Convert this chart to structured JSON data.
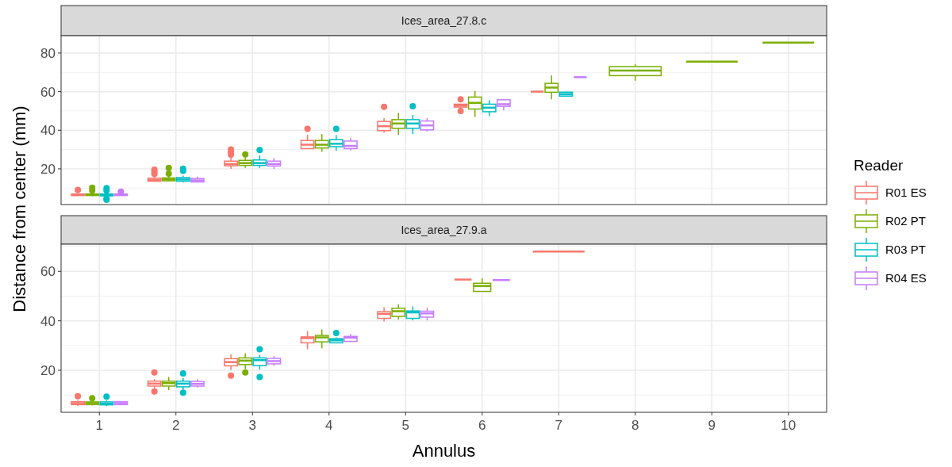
{
  "chart_data": [
    {
      "type": "box",
      "title": "Ices_area_27.8.c",
      "ylabel": "Distance from center (mm)",
      "legend": "right",
      "legend_title": "Reader",
      "tick_labels": "y",
      "grid": true,
      "categories": [
        "1",
        "2",
        "3",
        "4",
        "5",
        "6",
        "7",
        "8",
        "9",
        "10"
      ],
      "ylim": [
        1.5,
        89
      ],
      "yticks": [
        20,
        40,
        60,
        80
      ],
      "series": [
        {
          "name": "R01 ES",
          "color": "#f8766d",
          "boxes": [
            {
              "low": 5.8,
              "q1": 6.2,
              "median": 6.5,
              "q3": 7,
              "high": 7.5,
              "outliers": [
                9.1
              ]
            },
            {
              "low": 13.6,
              "q1": 13.6,
              "median": 14.3,
              "q3": 15.2,
              "high": 16.2,
              "outliers": [
                17.4,
                18.5,
                19.6
              ]
            },
            {
              "low": 20,
              "q1": 21.6,
              "median": 22.5,
              "q3": 24,
              "high": 26,
              "outliers": [
                27.4,
                28.8,
                30.1
              ]
            },
            {
              "low": 30.5,
              "q1": 30.5,
              "median": 32.5,
              "q3": 34.7,
              "high": 37.7,
              "outliers": [
                40.7
              ]
            },
            {
              "low": 38.8,
              "q1": 39.8,
              "median": 42.1,
              "q3": 44.6,
              "high": 46.3,
              "outliers": [
                52.1
              ]
            },
            {
              "low": 51.5,
              "q1": 52,
              "median": 52.8,
              "q3": 53.5,
              "high": 53.5,
              "outliers": [
                50,
                56
              ]
            },
            {
              "low": 60,
              "q1": 60,
              "median": 60,
              "q3": 60,
              "high": 60
            },
            null,
            null,
            null
          ]
        },
        {
          "name": "R02 PT",
          "color": "#7cae00",
          "boxes": [
            {
              "low": 5.8,
              "q1": 6.2,
              "median": 6.5,
              "q3": 7,
              "high": 7.5,
              "outliers": [
                8.8,
                10.2
              ]
            },
            {
              "low": 13.8,
              "q1": 13.8,
              "median": 14.5,
              "q3": 15.3,
              "high": 16.5,
              "outliers": [
                17.5,
                20.5
              ]
            },
            {
              "low": 20.5,
              "q1": 21.8,
              "median": 23,
              "q3": 24.4,
              "high": 26,
              "outliers": [
                27.5
              ]
            },
            {
              "low": 28.8,
              "q1": 30.8,
              "median": 32.5,
              "q3": 34.7,
              "high": 38
            },
            {
              "low": 37.7,
              "q1": 41,
              "median": 43.5,
              "q3": 45.5,
              "high": 49.1
            },
            {
              "low": 46.9,
              "q1": 51,
              "median": 54.2,
              "q3": 57.2,
              "high": 60.4
            },
            {
              "low": 56,
              "q1": 59.7,
              "median": 62.1,
              "q3": 64.3,
              "high": 68.5
            },
            {
              "low": 65.7,
              "q1": 68.3,
              "median": 70.9,
              "q3": 73,
              "high": 74.2
            },
            {
              "low": 75.5,
              "q1": 75.5,
              "median": 75.5,
              "q3": 75.5,
              "high": 75.5
            },
            {
              "low": 85.4,
              "q1": 85.4,
              "median": 85.4,
              "q3": 85.4,
              "high": 85.4
            }
          ]
        },
        {
          "name": "R03 PT",
          "color": "#00bfc4",
          "boxes": [
            {
              "low": 5.5,
              "q1": 6,
              "median": 6.5,
              "q3": 7,
              "high": 7.8,
              "outliers": [
                4,
                4.7,
                8.8,
                10
              ]
            },
            {
              "low": 13,
              "q1": 13.6,
              "median": 14.5,
              "q3": 15.5,
              "high": 16.5,
              "outliers": [
                19,
                20.1
              ]
            },
            {
              "low": 20.5,
              "q1": 21.8,
              "median": 23,
              "q3": 24.6,
              "high": 27,
              "outliers": [
                29.7
              ]
            },
            {
              "low": 29.4,
              "q1": 31.5,
              "median": 33,
              "q3": 35.2,
              "high": 37.5,
              "outliers": [
                40.7
              ]
            },
            {
              "low": 38,
              "q1": 41,
              "median": 43.5,
              "q3": 45.5,
              "high": 47.9,
              "outliers": [
                52.4
              ]
            },
            {
              "low": 47.3,
              "q1": 49.6,
              "median": 51.7,
              "q3": 53.5,
              "high": 55.5
            },
            {
              "low": 57.5,
              "q1": 57.7,
              "median": 58.7,
              "q3": 59.7,
              "high": 60
            },
            null,
            null,
            null
          ]
        },
        {
          "name": "R04 ES",
          "color": "#c77cff",
          "boxes": [
            {
              "low": 6.2,
              "q1": 6.2,
              "median": 6.5,
              "q3": 7,
              "high": 7.5,
              "outliers": [
                8.2
              ]
            },
            {
              "low": 13,
              "q1": 13.2,
              "median": 14,
              "q3": 15,
              "high": 16
            },
            {
              "low": 20,
              "q1": 21.5,
              "median": 22.5,
              "q3": 24,
              "high": 25.6
            },
            {
              "low": 29.5,
              "q1": 30.5,
              "median": 31.9,
              "q3": 34.4,
              "high": 35.9
            },
            {
              "low": 39.3,
              "q1": 40.2,
              "median": 42.5,
              "q3": 44.8,
              "high": 46.3
            },
            {
              "low": 50.3,
              "q1": 52.4,
              "median": 53.5,
              "q3": 55.8,
              "high": 56.2
            },
            {
              "low": 67.5,
              "q1": 67.5,
              "median": 67.5,
              "q3": 67.5,
              "high": 67.5
            },
            null,
            null,
            null
          ]
        }
      ]
    },
    {
      "type": "box",
      "title": "Ices_area_27.9.a",
      "xlabel": "Annulus",
      "grid": true,
      "categories": [
        "1",
        "2",
        "3",
        "4",
        "5",
        "6",
        "7",
        "8",
        "9",
        "10"
      ],
      "ylim": [
        3,
        71
      ],
      "yticks": [
        20,
        40,
        60
      ],
      "series": [
        {
          "name": "R01 ES",
          "color": "#f8766d",
          "boxes": [
            {
              "low": 5.5,
              "q1": 6.1,
              "median": 6.7,
              "q3": 7.3,
              "high": 7.9,
              "outliers": [
                9.5
              ]
            },
            {
              "low": 12.7,
              "q1": 13.6,
              "median": 14.6,
              "q3": 15.6,
              "high": 16.4,
              "outliers": [
                11.4,
                19.1
              ]
            },
            {
              "low": 20.2,
              "q1": 21.8,
              "median": 23.3,
              "q3": 24.7,
              "high": 26.4,
              "outliers": [
                17.8
              ]
            },
            {
              "low": 28.5,
              "q1": 31.1,
              "median": 33,
              "q3": 33.5,
              "high": 35.9
            },
            {
              "low": 39.7,
              "q1": 41,
              "median": 42.8,
              "q3": 43.7,
              "high": 45.5
            },
            {
              "low": 56.7,
              "q1": 56.7,
              "median": 56.7,
              "q3": 56.7,
              "high": 56.7
            },
            {
              "low": 68,
              "q1": 68,
              "median": 68,
              "q3": 68,
              "high": 68
            },
            null,
            null,
            null
          ]
        },
        {
          "name": "R02 PT",
          "color": "#7cae00",
          "boxes": [
            {
              "low": 5.8,
              "q1": 6.1,
              "median": 6.7,
              "q3": 7.2,
              "high": 7.8,
              "outliers": [
                8.7
              ]
            },
            {
              "low": 12,
              "q1": 13.6,
              "median": 14.8,
              "q3": 15.6,
              "high": 17.3
            },
            {
              "low": 20.6,
              "q1": 22.3,
              "median": 23.9,
              "q3": 25,
              "high": 26.8,
              "outliers": [
                19.1
              ]
            },
            {
              "low": 28.9,
              "q1": 31.5,
              "median": 33.3,
              "q3": 34.1,
              "high": 36.5
            },
            {
              "low": 40.5,
              "q1": 41.8,
              "median": 43.9,
              "q3": 45.1,
              "high": 46.7
            },
            {
              "low": 51.9,
              "q1": 51.9,
              "median": 54.1,
              "q3": 55.2,
              "high": 57.2
            },
            null,
            null,
            null,
            null
          ]
        },
        {
          "name": "R03 PT",
          "color": "#00bfc4",
          "boxes": [
            {
              "low": 5.5,
              "q1": 6,
              "median": 6.5,
              "q3": 7.2,
              "high": 7.8,
              "outliers": [
                9.3
              ]
            },
            {
              "low": 12.1,
              "q1": 13.3,
              "median": 14.6,
              "q3": 15.6,
              "high": 16.9,
              "outliers": [
                10.9,
                18.7
              ]
            },
            {
              "low": 20.3,
              "q1": 21.9,
              "median": 24.1,
              "q3": 25,
              "high": 26.2,
              "outliers": [
                17.3,
                28.5
              ]
            },
            {
              "low": 31,
              "q1": 31.1,
              "median": 32.1,
              "q3": 32.8,
              "high": 33.3,
              "outliers": [
                35.1
              ]
            },
            {
              "low": 40.2,
              "q1": 41,
              "median": 43.4,
              "q3": 44,
              "high": 45.8
            },
            null,
            null,
            null,
            null,
            null
          ]
        },
        {
          "name": "R04 ES",
          "color": "#c77cff",
          "boxes": [
            {
              "low": 5.9,
              "q1": 6.1,
              "median": 6.7,
              "q3": 7.3,
              "high": 7.5
            },
            {
              "low": 13,
              "q1": 13.6,
              "median": 14.5,
              "q3": 15.5,
              "high": 16.4
            },
            {
              "low": 21.8,
              "q1": 22.6,
              "median": 23.7,
              "q3": 24.8,
              "high": 25.8
            },
            {
              "low": 31.5,
              "q1": 31.7,
              "median": 33.2,
              "q3": 33.7,
              "high": 34.6
            },
            {
              "low": 40.2,
              "q1": 41.5,
              "median": 43,
              "q3": 43.9,
              "high": 45.3
            },
            {
              "low": 56.5,
              "q1": 56.5,
              "median": 56.5,
              "q3": 56.5,
              "high": 56.5
            },
            null,
            null,
            null,
            null
          ]
        }
      ]
    }
  ]
}
